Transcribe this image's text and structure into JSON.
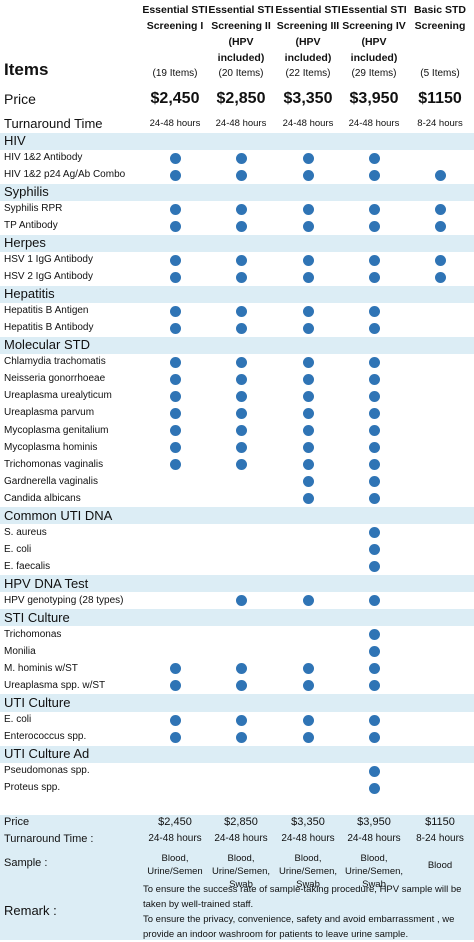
{
  "header": {
    "items_label": "Items",
    "price_label": "Price",
    "turnaround_label": "Turnaround Time"
  },
  "packages": [
    {
      "name": "Essential STI Screening I",
      "count": "(19 Items)",
      "price": "$2,450",
      "turnaround": "24-48 hours",
      "sample": "Blood, Urine/Semen"
    },
    {
      "name": "Essential STI Screening II (HPV included)",
      "count": "(20 Items)",
      "price": "$2,850",
      "turnaround": "24-48 hours",
      "sample": "Blood, Urine/Semen, Swab"
    },
    {
      "name": "Essential STI Screening III (HPV included)",
      "count": "(22 Items)",
      "price": "$3,350",
      "turnaround": "24-48 hours",
      "sample": "Blood, Urine/Semen, Swab"
    },
    {
      "name": "Essential STI Screening IV (HPV included)",
      "count": "(29 Items)",
      "price": "$3,950",
      "turnaround": "24-48 hours",
      "sample": "Blood, Urine/Semen, Swab"
    },
    {
      "name": "Basic STD Screening",
      "count": "(5 Items)",
      "price": "$1150",
      "turnaround": "8-24 hours",
      "sample": "Blood"
    }
  ],
  "sections": [
    {
      "title": "HIV",
      "items": [
        {
          "name": "HIV 1&2 Antibody",
          "included": [
            true,
            true,
            true,
            true,
            false
          ]
        },
        {
          "name": "HIV 1&2 p24 Ag/Ab Combo",
          "included": [
            true,
            true,
            true,
            true,
            true
          ]
        }
      ]
    },
    {
      "title": "Syphilis",
      "items": [
        {
          "name": "Syphilis RPR",
          "included": [
            true,
            true,
            true,
            true,
            true
          ]
        },
        {
          "name": "TP Antibody",
          "included": [
            true,
            true,
            true,
            true,
            true
          ]
        }
      ]
    },
    {
      "title": "Herpes",
      "items": [
        {
          "name": "HSV 1 IgG Antibody",
          "included": [
            true,
            true,
            true,
            true,
            true
          ]
        },
        {
          "name": "HSV 2 IgG Antibody",
          "included": [
            true,
            true,
            true,
            true,
            true
          ]
        }
      ]
    },
    {
      "title": "Hepatitis",
      "items": [
        {
          "name": "Hepatitis B Antigen",
          "included": [
            true,
            true,
            true,
            true,
            false
          ]
        },
        {
          "name": "Hepatitis B Antibody",
          "included": [
            true,
            true,
            true,
            true,
            false
          ]
        }
      ]
    },
    {
      "title": "Molecular STD",
      "items": [
        {
          "name": "Chlamydia trachomatis",
          "included": [
            true,
            true,
            true,
            true,
            false
          ]
        },
        {
          "name": "Neisseria gonorrhoeae",
          "included": [
            true,
            true,
            true,
            true,
            false
          ]
        },
        {
          "name": "Ureaplasma urealyticum",
          "included": [
            true,
            true,
            true,
            true,
            false
          ]
        },
        {
          "name": "Ureaplasma parvum",
          "included": [
            true,
            true,
            true,
            true,
            false
          ]
        },
        {
          "name": "Mycoplasma genitalium",
          "included": [
            true,
            true,
            true,
            true,
            false
          ]
        },
        {
          "name": "Mycoplasma hominis",
          "included": [
            true,
            true,
            true,
            true,
            false
          ]
        },
        {
          "name": "Trichomonas vaginalis",
          "included": [
            true,
            true,
            true,
            true,
            false
          ]
        },
        {
          "name": "Gardnerella vaginalis",
          "included": [
            false,
            false,
            true,
            true,
            false
          ]
        },
        {
          "name": "Candida albicans",
          "included": [
            false,
            false,
            true,
            true,
            false
          ]
        }
      ]
    },
    {
      "title": "Common UTI DNA",
      "items": [
        {
          "name": "S. aureus",
          "included": [
            false,
            false,
            false,
            true,
            false
          ]
        },
        {
          "name": "E. coli",
          "included": [
            false,
            false,
            false,
            true,
            false
          ]
        },
        {
          "name": "E. faecalis",
          "included": [
            false,
            false,
            false,
            true,
            false
          ]
        }
      ]
    },
    {
      "title": "HPV DNA Test",
      "items": [
        {
          "name": "HPV genotyping (28 types)",
          "included": [
            false,
            true,
            true,
            true,
            false
          ]
        }
      ]
    },
    {
      "title": "STI Culture",
      "items": [
        {
          "name": "Trichomonas",
          "included": [
            false,
            false,
            false,
            true,
            false
          ]
        },
        {
          "name": "Monilia",
          "included": [
            false,
            false,
            false,
            true,
            false
          ]
        },
        {
          "name": "M. hominis w/ST",
          "included": [
            true,
            true,
            true,
            true,
            false
          ]
        },
        {
          "name": "Ureaplasma spp. w/ST",
          "included": [
            true,
            true,
            true,
            true,
            false
          ]
        }
      ]
    },
    {
      "title": "UTI Culture",
      "items": [
        {
          "name": "E. coli",
          "included": [
            true,
            true,
            true,
            true,
            false
          ]
        },
        {
          "name": "Enterococcus spp.",
          "included": [
            true,
            true,
            true,
            true,
            false
          ]
        }
      ]
    },
    {
      "title": "UTI Culture Ad",
      "items": [
        {
          "name": "Pseudomonas spp.",
          "included": [
            false,
            false,
            false,
            true,
            false
          ]
        },
        {
          "name": "Proteus spp.",
          "included": [
            false,
            false,
            false,
            true,
            false
          ]
        }
      ]
    }
  ],
  "footer": {
    "price_label": "Price",
    "turnaround_label": "Turnaround Time :",
    "sample_label": "Sample :",
    "remark_label": "Remark :",
    "remarks": [
      "To ensure the success rate of sample-taking procedure, HPV sample will be taken by well-trained staff.",
      "To ensure the privacy, convenience, safety and avoid embarrassment , we provide an indoor washroom for patients to leave urine sample."
    ]
  }
}
